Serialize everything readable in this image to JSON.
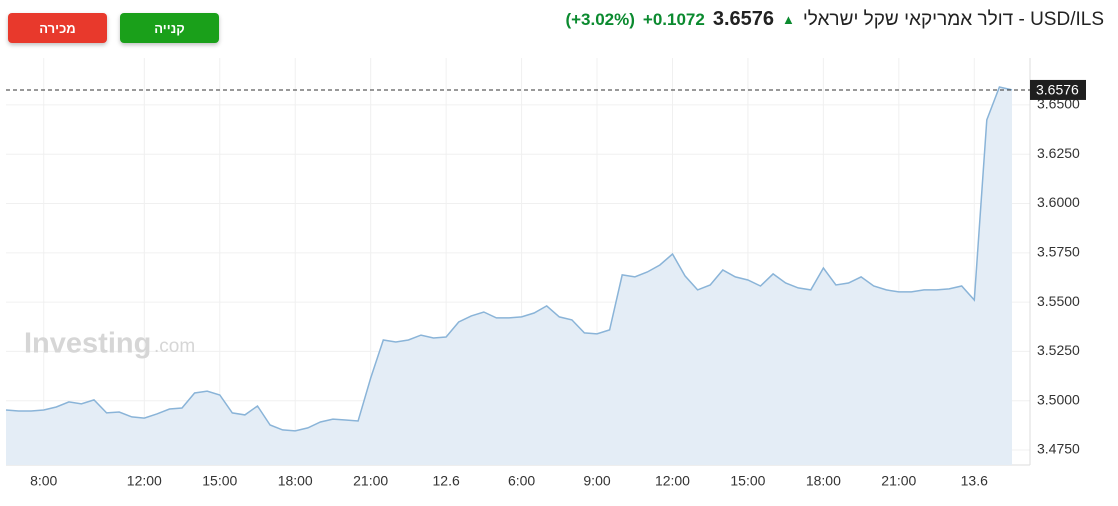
{
  "header": {
    "title": "USD/ILS - דולר אמריקאי שקל ישראלי",
    "price": "3.6576",
    "change": "+0.1072",
    "change_pct": "(+3.02%)"
  },
  "buttons": {
    "buy": "קנייה",
    "sell": "מכירה"
  },
  "watermark": {
    "brand": "Investing",
    "suffix": ".com"
  },
  "chart_data": {
    "type": "area",
    "color": "#8ab4d8",
    "fill": "#e4edf6",
    "grid": true,
    "categories": [
      null,
      null,
      null,
      "8:00",
      null,
      null,
      null,
      null,
      null,
      null,
      null,
      "12:00",
      null,
      null,
      null,
      null,
      null,
      "15:00",
      null,
      null,
      null,
      null,
      null,
      "18:00",
      null,
      null,
      null,
      null,
      null,
      "21:00",
      null,
      null,
      null,
      null,
      null,
      "12.6",
      null,
      null,
      null,
      null,
      null,
      "6:00",
      null,
      null,
      null,
      null,
      null,
      "9:00",
      null,
      null,
      null,
      null,
      null,
      "12:00",
      null,
      null,
      null,
      null,
      null,
      "15:00",
      null,
      null,
      null,
      null,
      null,
      "18:00",
      null,
      null,
      null,
      null,
      null,
      "21:00",
      null,
      null,
      null,
      null,
      null,
      "13.6",
      null,
      null,
      null
    ],
    "values": [
      3.4953,
      3.4948,
      3.4948,
      3.4953,
      3.4968,
      3.4994,
      3.4984,
      3.5004,
      3.4938,
      3.4943,
      3.4918,
      3.4912,
      3.4933,
      3.4958,
      3.4963,
      3.5039,
      3.5049,
      3.5029,
      3.4938,
      3.4928,
      3.4973,
      3.4877,
      3.4852,
      3.4847,
      3.4862,
      3.4892,
      3.4907,
      3.4902,
      3.4897,
      3.5115,
      3.5308,
      3.5298,
      3.5308,
      3.5333,
      3.5318,
      3.5323,
      3.5399,
      3.543,
      3.545,
      3.542,
      3.542,
      3.5425,
      3.5445,
      3.5481,
      3.5425,
      3.541,
      3.5344,
      3.5339,
      3.5359,
      3.5638,
      3.5628,
      3.5653,
      3.5688,
      3.5744,
      3.5633,
      3.5562,
      3.5587,
      3.5663,
      3.5628,
      3.5612,
      3.5582,
      3.5643,
      3.5597,
      3.5572,
      3.5562,
      3.5673,
      3.5587,
      3.5597,
      3.5628,
      3.5582,
      3.5562,
      3.5552,
      3.5552,
      3.5562,
      3.5562,
      3.5567,
      3.5582,
      3.5511,
      3.6424,
      3.6591,
      3.6576
    ],
    "last_price": 3.6576,
    "ylim": [
      3.4674,
      3.6738
    ],
    "yticks": [
      {
        "value": 3.475,
        "label": "3.4750"
      },
      {
        "value": 3.5,
        "label": "3.5000"
      },
      {
        "value": 3.525,
        "label": "3.5250"
      },
      {
        "value": 3.55,
        "label": "3.5500"
      },
      {
        "value": 3.575,
        "label": "3.5750"
      },
      {
        "value": 3.6,
        "label": "3.6000"
      },
      {
        "value": 3.625,
        "label": "3.6250"
      },
      {
        "value": 3.65,
        "label": "3.6500"
      }
    ]
  }
}
